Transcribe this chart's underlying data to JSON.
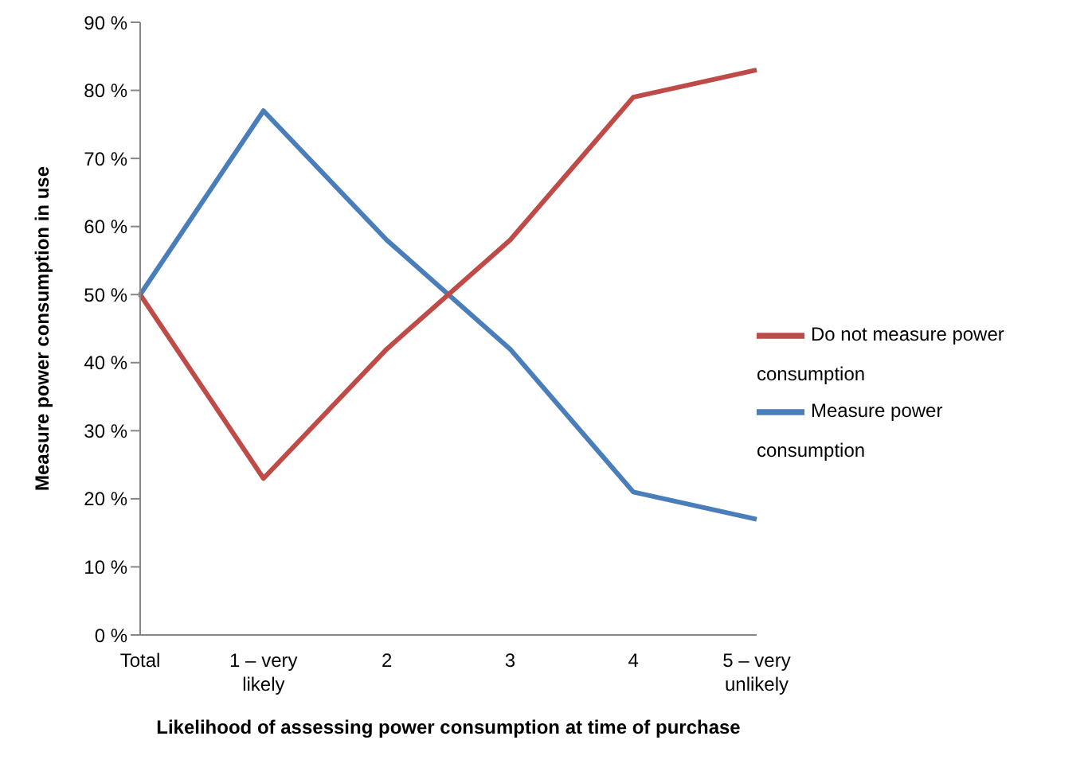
{
  "chart_data": {
    "type": "line",
    "xlabel": "Likelihood of assessing power consumption at time of purchase",
    "ylabel": "Measure power consumption in use",
    "categories": [
      "Total",
      "1 – very likely",
      "2",
      "3",
      "4",
      "5 – very unlikely"
    ],
    "series": [
      {
        "name": "Measure power consumption",
        "color": "#4a7ebb",
        "values": [
          50,
          77,
          58,
          42,
          21,
          17
        ]
      },
      {
        "name": "Do not measure power consumption",
        "color": "#be4b48",
        "values": [
          50,
          23,
          42,
          58,
          79,
          83
        ]
      }
    ],
    "ylim": [
      0,
      90
    ],
    "yticks": [
      {
        "value": 0,
        "label": "0 %"
      },
      {
        "value": 10,
        "label": "10 %"
      },
      {
        "value": 20,
        "label": "20 %"
      },
      {
        "value": 30,
        "label": "30 %"
      },
      {
        "value": 40,
        "label": "40 %"
      },
      {
        "value": 50,
        "label": "50 %"
      },
      {
        "value": 60,
        "label": "60 %"
      },
      {
        "value": 70,
        "label": "70 %"
      },
      {
        "value": 80,
        "label": "80 %"
      },
      {
        "value": 90,
        "label": "90 %"
      }
    ],
    "grid": false,
    "legend": "right",
    "marker": "none",
    "line_style": "solid"
  }
}
